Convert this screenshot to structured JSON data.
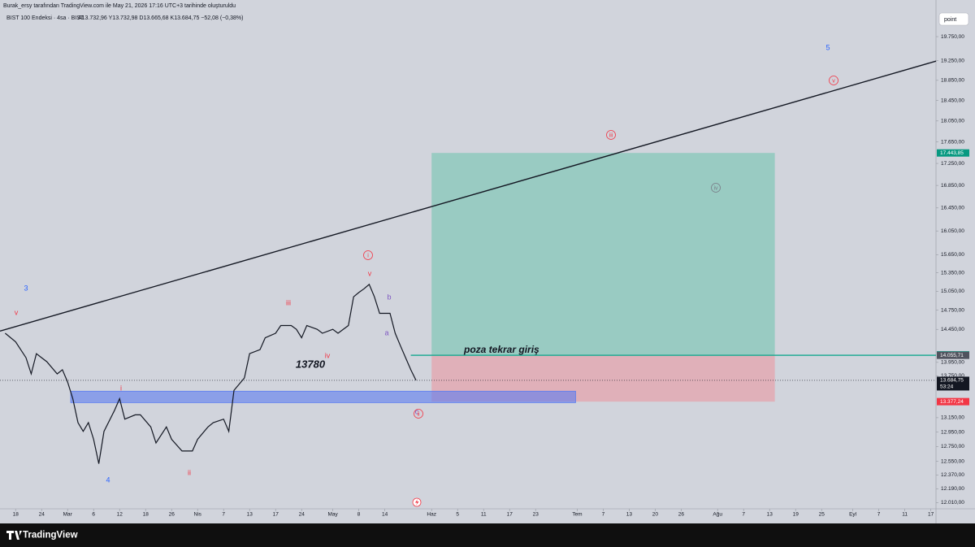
{
  "header": {
    "credit": "Burak_ersy tarafından TradingView.com ile May 21, 2026 17:16 UTC+3 tarihinde oluşturuldu",
    "symbol": "BIST 100 Endeksi · 4sa · BIST",
    "ohlc": "A13.732,96  Y13.732,98  D13.665,68  K13.684,75  −52,08 (−0,38%)"
  },
  "toolbar": {
    "button": "point"
  },
  "footer": {
    "logo": "TradingView"
  },
  "chart_data": {
    "type": "line",
    "log": true,
    "color": "#131722",
    "x": [
      -2,
      0,
      2,
      3,
      4,
      5,
      6,
      8,
      9,
      10,
      11,
      12,
      13,
      14,
      15,
      16,
      17,
      19,
      20,
      21,
      23,
      24,
      26,
      27,
      29,
      30,
      32,
      34,
      35,
      37,
      38,
      40,
      41,
      42,
      44,
      45,
      47,
      48,
      50,
      51,
      53,
      54,
      55,
      56,
      58,
      59,
      61,
      62,
      64,
      65,
      66,
      67,
      68,
      69,
      70,
      72,
      73,
      74,
      75,
      76,
      77
    ],
    "values": [
      14390,
      14260,
      14020,
      13780,
      14080,
      14020,
      13960,
      13780,
      13840,
      13660,
      13420,
      13080,
      12960,
      13080,
      12850,
      12520,
      12960,
      13250,
      13420,
      13130,
      13190,
      13190,
      13020,
      12800,
      13020,
      12850,
      12690,
      12690,
      12850,
      13020,
      13080,
      13130,
      12960,
      13540,
      13720,
      14080,
      14140,
      14320,
      14390,
      14510,
      14510,
      14450,
      14320,
      14510,
      14450,
      14390,
      14450,
      14390,
      14510,
      14960,
      15030,
      15090,
      15160,
      14960,
      14700,
      14700,
      14390,
      14200,
      14020,
      13840,
      13685
    ],
    "xlim": [
      -3,
      177
    ],
    "ylim": [
      11890,
      20360
    ],
    "xticks": [
      {
        "value": 0,
        "label": "18"
      },
      {
        "value": 5,
        "label": "24"
      },
      {
        "value": 10,
        "label": "Mar"
      },
      {
        "value": 15,
        "label": "6"
      },
      {
        "value": 20,
        "label": "12"
      },
      {
        "value": 25,
        "label": "18"
      },
      {
        "value": 30,
        "label": "26"
      },
      {
        "value": 35,
        "label": "Nis"
      },
      {
        "value": 40,
        "label": "7"
      },
      {
        "value": 45,
        "label": "13"
      },
      {
        "value": 50,
        "label": "17"
      },
      {
        "value": 55,
        "label": "24"
      },
      {
        "value": 61,
        "label": "May"
      },
      {
        "value": 66,
        "label": "8"
      },
      {
        "value": 71,
        "label": "14"
      },
      {
        "value": 80,
        "label": "Haz"
      },
      {
        "value": 85,
        "label": "5"
      },
      {
        "value": 90,
        "label": "11"
      },
      {
        "value": 95,
        "label": "17"
      },
      {
        "value": 100,
        "label": "23"
      },
      {
        "value": 108,
        "label": "Tem"
      },
      {
        "value": 113,
        "label": "7"
      },
      {
        "value": 118,
        "label": "13"
      },
      {
        "value": 123,
        "label": "20"
      },
      {
        "value": 128,
        "label": "26"
      },
      {
        "value": 135,
        "label": "Ağu"
      },
      {
        "value": 140,
        "label": "7"
      },
      {
        "value": 145,
        "label": "13"
      },
      {
        "value": 150,
        "label": "19"
      },
      {
        "value": 155,
        "label": "25"
      },
      {
        "value": 161,
        "label": "Eyl"
      },
      {
        "value": 166,
        "label": "7"
      },
      {
        "value": 171,
        "label": "11"
      },
      {
        "value": 176,
        "label": "17"
      }
    ],
    "yticks": [
      {
        "value": 19750,
        "label": "19.750,00"
      },
      {
        "value": 19250,
        "label": "19.250,00"
      },
      {
        "value": 18850,
        "label": "18.850,00"
      },
      {
        "value": 18450,
        "label": "18.450,00"
      },
      {
        "value": 18050,
        "label": "18.050,00"
      },
      {
        "value": 17650,
        "label": "17.650,00"
      },
      {
        "value": 17250,
        "label": "17.250,00"
      },
      {
        "value": 16850,
        "label": "16.850,00"
      },
      {
        "value": 16450,
        "label": "16.450,00"
      },
      {
        "value": 16050,
        "label": "16.050,00"
      },
      {
        "value": 15650,
        "label": "15.650,00"
      },
      {
        "value": 15350,
        "label": "15.350,00"
      },
      {
        "value": 15050,
        "label": "15.050,00"
      },
      {
        "value": 14750,
        "label": "14.750,00"
      },
      {
        "value": 14450,
        "label": "14.450,00"
      },
      {
        "value": 13950,
        "label": "13.950,00"
      },
      {
        "value": 13750,
        "label": "13.750,00"
      },
      {
        "value": 13150,
        "label": "13.150,00"
      },
      {
        "value": 12950,
        "label": "12.950,00"
      },
      {
        "value": 12750,
        "label": "12.750,00"
      },
      {
        "value": 12550,
        "label": "12.550,00"
      },
      {
        "value": 12370,
        "label": "12.370,00"
      },
      {
        "value": 12190,
        "label": "12.190,00"
      },
      {
        "value": 12010,
        "label": "12.010,00"
      }
    ],
    "trend_line": {
      "x": [
        -3,
        177
      ],
      "values": [
        14424,
        19240
      ],
      "color": "#131722"
    },
    "zone": {
      "x": [
        10.6,
        107.7
      ],
      "values": [
        13527,
        13363
      ],
      "color": "#5b7cf0"
    },
    "position": {
      "x": [
        80,
        146
      ],
      "target_color": "#8fc9bd",
      "stop_color": "#e3a9b3"
    },
    "price_labels": [
      {
        "value": 17443.85,
        "label": "17.443,85",
        "color": "#089981"
      },
      {
        "value": 14063.63,
        "label": "14.063,63",
        "color": "#22ab94"
      },
      {
        "value": 14055.71,
        "label": "14.055,71",
        "color": "#50535e"
      },
      {
        "value": 13684.75,
        "label": "13.684,75",
        "color": "#131722"
      },
      {
        "value": 13377.24,
        "label": "13.377,24",
        "color": "#f23645"
      }
    ],
    "countdown": "53:24",
    "reentry_x": 76,
    "annotations": [
      {
        "text": "3"
      },
      {
        "text": "v"
      },
      {
        "text": "4"
      },
      {
        "text": "i"
      },
      {
        "text": "ii"
      },
      {
        "text": "iii"
      },
      {
        "text": "iv"
      },
      {
        "text": "13780"
      },
      {
        "text": "v"
      },
      {
        "text": "b"
      },
      {
        "text": "a"
      },
      {
        "text": "c"
      },
      {
        "text": "i"
      },
      {
        "text": "ii"
      },
      {
        "text": "iii"
      },
      {
        "text": "iv"
      },
      {
        "text": "v"
      },
      {
        "text": "5"
      },
      {
        "text": "poza tekrar giriş"
      }
    ]
  }
}
